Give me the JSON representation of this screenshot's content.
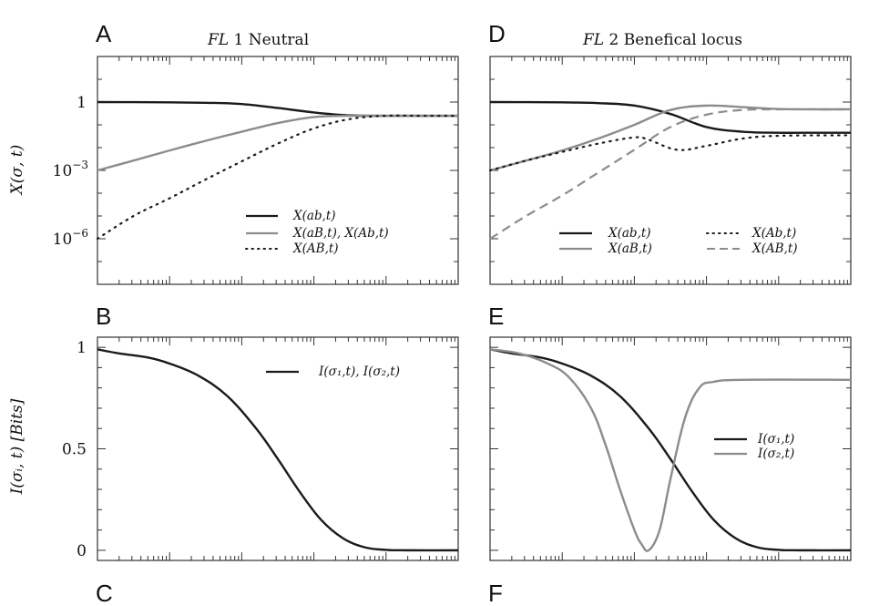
{
  "colors": {
    "black": "#1a1a1a",
    "gray": "#8c8c8c"
  },
  "chart_data": [
    {
      "panel": "A",
      "type": "line",
      "title": "FL 1 Neutral",
      "ylabel": "X(σ, t)",
      "yscale": "log",
      "ylim": [
        1e-08,
        100
      ],
      "yticks": [
        {
          "value": 1,
          "label": "1"
        },
        {
          "value": 0.001,
          "base": "10",
          "exp": "−3"
        },
        {
          "value": 1e-06,
          "base": "10",
          "exp": "−6"
        }
      ],
      "legend_position": "lower-right",
      "series": [
        {
          "name": "X(ab,t)",
          "color": "#1a1a1a",
          "dash": "solid",
          "x": [
            0,
            0.5,
            1,
            1.5,
            2,
            2.5,
            3,
            3.5,
            4,
            4.5,
            5
          ],
          "y": [
            1,
            0.99,
            0.97,
            0.93,
            0.82,
            0.55,
            0.35,
            0.26,
            0.25,
            0.25,
            0.25
          ]
        },
        {
          "name": "X(aB,t), X(Ab,t)",
          "color": "#8c8c8c",
          "dash": "solid",
          "x": [
            0,
            0.5,
            1,
            1.5,
            2,
            2.5,
            3,
            3.5,
            4,
            4.5,
            5
          ],
          "y": [
            0.001,
            0.0027,
            0.0075,
            0.02,
            0.05,
            0.12,
            0.22,
            0.25,
            0.25,
            0.25,
            0.25
          ]
        },
        {
          "name": "X(AB,t)",
          "color": "#1a1a1a",
          "dash": "dotted",
          "x": [
            0,
            0.5,
            1,
            1.5,
            2,
            2.5,
            3,
            3.5,
            4,
            4.5,
            5
          ],
          "y": [
            1e-06,
            1e-05,
            6e-05,
            0.0004,
            0.0025,
            0.015,
            0.07,
            0.18,
            0.25,
            0.25,
            0.25
          ]
        }
      ]
    },
    {
      "panel": "B",
      "type": "line",
      "ylabel": "I(σᵢ, t) [Bits]",
      "ylim": [
        -0.05,
        1.05
      ],
      "yticks": [
        {
          "value": 1,
          "label": "1"
        },
        {
          "value": 0.5,
          "label": "0.5"
        },
        {
          "value": 0,
          "label": "0"
        }
      ],
      "legend_position": "top-right",
      "series": [
        {
          "name": "I(σ₁,t), I(σ₂,t)",
          "color": "#1a1a1a",
          "dash": "solid",
          "x": [
            0,
            0.3,
            0.7,
            1,
            1.4,
            1.8,
            2.2,
            2.5,
            2.8,
            3.1,
            3.4,
            3.7,
            4,
            4.3,
            5
          ],
          "y": [
            0.99,
            0.97,
            0.95,
            0.92,
            0.86,
            0.76,
            0.6,
            0.45,
            0.29,
            0.15,
            0.06,
            0.015,
            0.002,
            0,
            0
          ]
        }
      ]
    },
    {
      "panel": "D",
      "type": "line",
      "title": "FL 2 Benefical locus",
      "yscale": "log",
      "ylim": [
        1e-08,
        100
      ],
      "yticks": [
        {
          "value": 1,
          "label": ""
        },
        {
          "value": 0.001,
          "label": ""
        },
        {
          "value": 1e-06,
          "label": ""
        }
      ],
      "legend_position": "lower",
      "series": [
        {
          "name": "X(ab,t)",
          "color": "#1a1a1a",
          "dash": "solid",
          "x": [
            0,
            0.5,
            1,
            1.5,
            2,
            2.5,
            3,
            3.5,
            4,
            4.5,
            5
          ],
          "y": [
            1,
            0.99,
            0.97,
            0.9,
            0.7,
            0.3,
            0.08,
            0.05,
            0.045,
            0.045,
            0.045
          ]
        },
        {
          "name": "X(aB,t)",
          "color": "#8c8c8c",
          "dash": "solid",
          "x": [
            0,
            0.5,
            1,
            1.5,
            2,
            2.5,
            3,
            3.5,
            4,
            4.5,
            5
          ],
          "y": [
            0.001,
            0.0027,
            0.0075,
            0.025,
            0.1,
            0.45,
            0.7,
            0.6,
            0.5,
            0.48,
            0.48
          ]
        },
        {
          "name": "X(Ab,t)",
          "color": "#1a1a1a",
          "dash": "dotted",
          "x": [
            0,
            0.5,
            1,
            1.5,
            2,
            2.2,
            2.6,
            3,
            3.5,
            4,
            5
          ],
          "y": [
            0.001,
            0.0027,
            0.0065,
            0.015,
            0.028,
            0.022,
            0.008,
            0.012,
            0.025,
            0.033,
            0.035
          ]
        },
        {
          "name": "X(AB,t)",
          "color": "#8c8c8c",
          "dash": "dashed",
          "x": [
            0,
            0.5,
            1,
            1.5,
            2,
            2.5,
            3,
            3.5,
            4,
            4.5,
            5
          ],
          "y": [
            1e-06,
            1e-05,
            8e-05,
            0.0008,
            0.008,
            0.08,
            0.28,
            0.45,
            0.48,
            0.48,
            0.48
          ]
        }
      ]
    },
    {
      "panel": "E",
      "type": "line",
      "ylim": [
        -0.05,
        1.05
      ],
      "yticks": [
        {
          "value": 1,
          "label": ""
        },
        {
          "value": 0.5,
          "label": ""
        },
        {
          "value": 0,
          "label": ""
        }
      ],
      "legend_position": "right",
      "series": [
        {
          "name": "I(σ₁,t)",
          "color": "#1a1a1a",
          "dash": "solid",
          "x": [
            0,
            0.3,
            0.7,
            1,
            1.4,
            1.8,
            2.2,
            2.5,
            2.8,
            3.1,
            3.4,
            3.7,
            4,
            4.3,
            5
          ],
          "y": [
            0.99,
            0.97,
            0.95,
            0.92,
            0.86,
            0.76,
            0.6,
            0.45,
            0.29,
            0.15,
            0.06,
            0.015,
            0.002,
            0,
            0
          ]
        },
        {
          "name": "I(σ₂,t)",
          "color": "#8c8c8c",
          "dash": "solid",
          "x": [
            0,
            0.4,
            0.8,
            1.1,
            1.4,
            1.6,
            1.8,
            2.0,
            2.1,
            2.2,
            2.35,
            2.5,
            2.7,
            2.9,
            3.1,
            3.5,
            5
          ],
          "y": [
            0.99,
            0.97,
            0.92,
            0.85,
            0.7,
            0.52,
            0.3,
            0.1,
            0.03,
            0.0,
            0.1,
            0.35,
            0.65,
            0.8,
            0.83,
            0.84,
            0.84
          ]
        }
      ]
    }
  ],
  "panel_letters": {
    "A": "A",
    "B": "B",
    "C": "C",
    "D": "D",
    "E": "E",
    "F": "F"
  },
  "legends": {
    "A": [
      {
        "pre": "X(",
        "mid": "ab",
        "post": ",t)"
      },
      {
        "pre": "X(",
        "mid": "aB",
        "post": ",t), X(Ab,t)"
      },
      {
        "pre": "X(",
        "mid": "AB",
        "post": ",t)"
      }
    ],
    "B": [
      "I(σ₁,t), I(σ₂,t)"
    ],
    "D": [
      "X(ab,t)",
      "X(aB,t)",
      "X(Ab,t)",
      "X(AB,t)"
    ],
    "E": [
      "I(σ₁,t)",
      "I(σ₂,t)"
    ]
  },
  "titles": {
    "A_prefix": "FL",
    "A_suffix": " 1 Neutral",
    "D_prefix": "FL",
    "D_suffix": " 2 Benefical locus"
  },
  "ylabels": {
    "top": "X(σ, t)",
    "bottom": "I(σᵢ, t) [Bits]"
  }
}
